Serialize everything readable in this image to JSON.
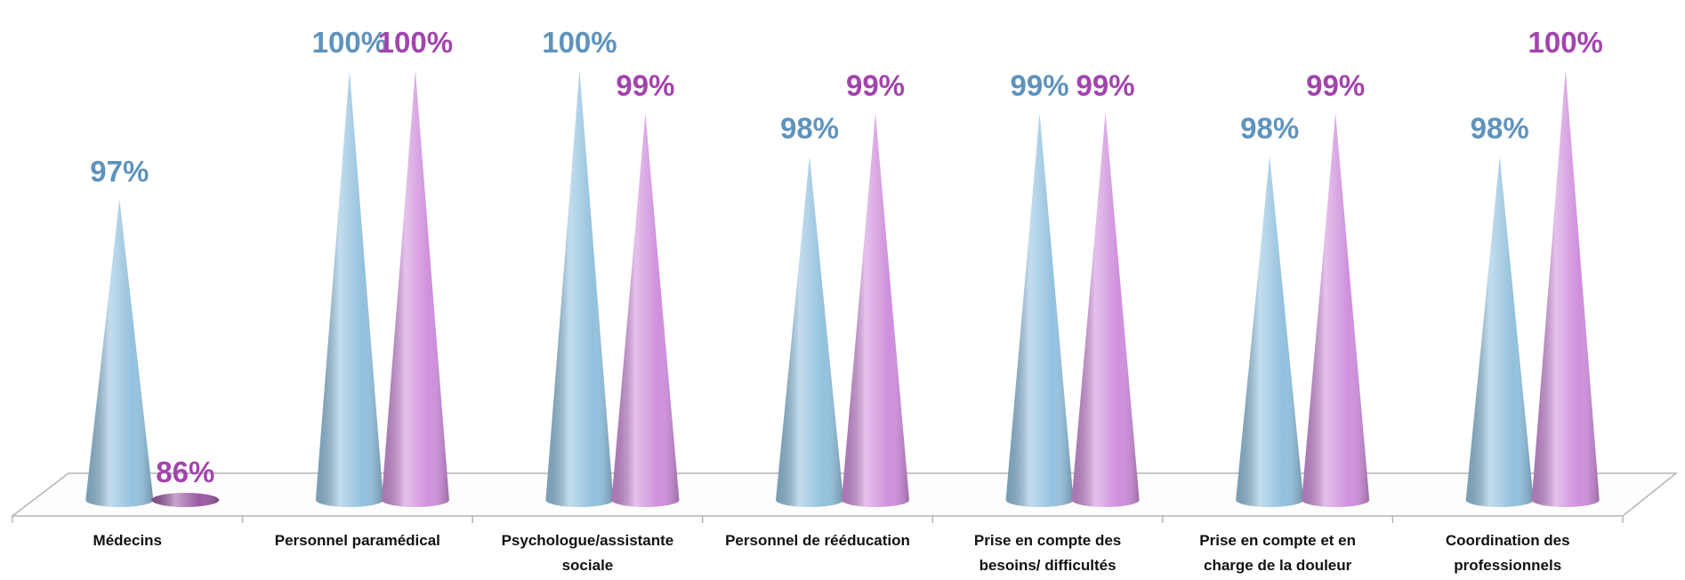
{
  "chart_data": {
    "type": "cone",
    "categories": [
      "Médecins",
      "Personnel paramédical",
      "Psychologue/assistante sociale",
      "Personnel de rééducation",
      "Prise en compte des besoins/ difficultés",
      "Prise en compte et en charge de la douleur",
      "Coordination des professionnels"
    ],
    "series": [
      {
        "color": "#93c1de",
        "label_color": "#5f93bd",
        "values": [
          97,
          100,
          100,
          98,
          99,
          98,
          98
        ],
        "value_labels": [
          "97%",
          "100%",
          "100%",
          "98%",
          "99%",
          "98%",
          "98%"
        ]
      },
      {
        "color": "#cf8fdc",
        "label_color": "#a244ad",
        "values": [
          86,
          100,
          99,
          99,
          99,
          99,
          100
        ],
        "value_labels": [
          "86%",
          "100%",
          "99%",
          "99%",
          "99%",
          "99%",
          "100%"
        ]
      }
    ],
    "ylim": [
      90,
      100
    ]
  }
}
